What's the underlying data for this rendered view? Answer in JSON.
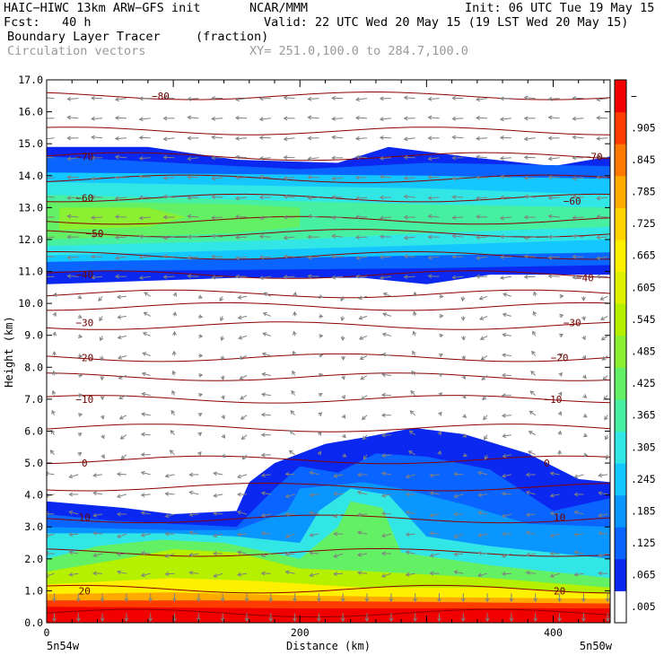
{
  "header": {
    "model": "HAIC−HIWC 13km ARW−GFS init",
    "org": "NCAR/MMM",
    "init": "Init: 06 UTC Tue 19 May 15",
    "fcst": "Fcst:   40 h",
    "valid": "Valid: 22 UTC Wed 20 May 15 (19 LST Wed 20 May 15)",
    "field": "Boundary Layer Tracer",
    "field_units": "(fraction)",
    "vectors": "Circulation vectors",
    "xsec": "XY= 251.0,100.0 to 284.7,100.0"
  },
  "chart_data": {
    "type": "heatmap",
    "xlabel": "Distance (km)",
    "ylabel": "Height (km)",
    "xlim": [
      0,
      445
    ],
    "ylim": [
      0,
      17
    ],
    "x_ticks": [
      "0",
      "200",
      "400"
    ],
    "x_tick_values": [
      0,
      200,
      400
    ],
    "x_end_labels": [
      "5n54w",
      "5n50w"
    ],
    "y_ticks": [
      "0.0",
      "1.0",
      "2.0",
      "3.0",
      "4.0",
      "5.0",
      "6.0",
      "7.0",
      "8.0",
      "9.0",
      "10.0",
      "11.0",
      "12.0",
      "13.0",
      "14.0",
      "15.0",
      "16.0",
      "17.0"
    ],
    "colorbar": {
      "labels": [
        ".005",
        ".065",
        ".125",
        ".185",
        ".245",
        ".305",
        ".365",
        ".425",
        ".485",
        ".545",
        ".605",
        ".665",
        ".725",
        ".785",
        ".845",
        ".905",
        "−"
      ],
      "colors": [
        "#ffffff",
        "#0a28f0",
        "#0a64ff",
        "#0a96ff",
        "#14c8ff",
        "#32e6e6",
        "#46f0a0",
        "#64f064",
        "#8cf032",
        "#b4f000",
        "#dcf000",
        "#fff000",
        "#ffd200",
        "#ffaa00",
        "#ff7800",
        "#ff3c00",
        "#f00000"
      ]
    },
    "contour_labels": [
      {
        "text": "−80",
        "x": 90,
        "y": 16.5
      },
      {
        "text": "−70",
        "x": 30,
        "y": 14.6
      },
      {
        "text": "−70",
        "x": 432,
        "y": 14.6
      },
      {
        "text": "−60",
        "x": 30,
        "y": 13.3
      },
      {
        "text": "−60",
        "x": 415,
        "y": 13.2
      },
      {
        "text": "−50",
        "x": 38,
        "y": 12.2
      },
      {
        "text": "−40",
        "x": 30,
        "y": 10.9
      },
      {
        "text": "−40",
        "x": 425,
        "y": 10.8
      },
      {
        "text": "−30",
        "x": 30,
        "y": 9.4
      },
      {
        "text": "−30",
        "x": 415,
        "y": 9.4
      },
      {
        "text": "−20",
        "x": 30,
        "y": 8.3
      },
      {
        "text": "−20",
        "x": 405,
        "y": 8.3
      },
      {
        "text": "−10",
        "x": 30,
        "y": 7.0
      },
      {
        "text": "−10",
        "x": 400,
        "y": 7.0
      },
      {
        "text": "0",
        "x": 30,
        "y": 5.0
      },
      {
        "text": "0",
        "x": 395,
        "y": 5.0
      },
      {
        "text": "10",
        "x": 30,
        "y": 3.3
      },
      {
        "text": "10",
        "x": 405,
        "y": 3.3
      },
      {
        "text": "20",
        "x": 30,
        "y": 1.0
      },
      {
        "text": "20",
        "x": 405,
        "y": 1.0
      }
    ],
    "contour_levels_y": [
      0.3,
      1.05,
      2.2,
      3.25,
      4.25,
      5.1,
      6.1,
      7.0,
      7.7,
      8.3,
      9.3,
      9.9,
      10.3,
      10.9,
      11.5,
      12.2,
      12.6,
      13.3,
      13.9,
      14.6,
      15.4,
      16.5
    ],
    "tracer_regions": [
      {
        "level": 1,
        "points": [
          [
            0,
            10.6
          ],
          [
            150,
            10.8
          ],
          [
            250,
            10.8
          ],
          [
            300,
            10.6
          ],
          [
            350,
            10.9
          ],
          [
            445,
            10.9
          ],
          [
            445,
            14.6
          ],
          [
            400,
            14.3
          ],
          [
            330,
            14.6
          ],
          [
            270,
            14.9
          ],
          [
            230,
            14.4
          ],
          [
            150,
            14.5
          ],
          [
            80,
            14.9
          ],
          [
            0,
            14.9
          ]
        ]
      },
      {
        "level": 2,
        "points": [
          [
            0,
            11.0
          ],
          [
            300,
            11.1
          ],
          [
            445,
            11.2
          ],
          [
            445,
            14.3
          ],
          [
            300,
            14.4
          ],
          [
            200,
            14.2
          ],
          [
            0,
            14.6
          ]
        ]
      },
      {
        "level": 4,
        "points": [
          [
            0,
            11.3
          ],
          [
            300,
            11.5
          ],
          [
            445,
            11.6
          ],
          [
            445,
            13.9
          ],
          [
            300,
            14.0
          ],
          [
            0,
            14.1
          ]
        ]
      },
      {
        "level": 5,
        "points": [
          [
            0,
            11.5
          ],
          [
            280,
            11.8
          ],
          [
            445,
            12.0
          ],
          [
            445,
            13.4
          ],
          [
            300,
            13.6
          ],
          [
            0,
            13.8
          ]
        ]
      },
      {
        "level": 6,
        "points": [
          [
            0,
            11.8
          ],
          [
            200,
            12.0
          ],
          [
            300,
            12.2
          ],
          [
            445,
            12.4
          ],
          [
            445,
            13.0
          ],
          [
            300,
            13.1
          ],
          [
            0,
            13.4
          ]
        ]
      },
      {
        "level": 7,
        "points": [
          [
            0,
            12.0
          ],
          [
            150,
            12.2
          ],
          [
            200,
            12.4
          ],
          [
            200,
            13.0
          ],
          [
            150,
            13.1
          ],
          [
            0,
            13.2
          ]
        ]
      },
      {
        "level": 8,
        "points": [
          [
            10,
            12.3
          ],
          [
            80,
            12.4
          ],
          [
            110,
            12.7
          ],
          [
            80,
            13.0
          ],
          [
            10,
            13.0
          ]
        ]
      },
      {
        "level": 1,
        "points": [
          [
            0,
            0
          ],
          [
            445,
            0
          ],
          [
            445,
            4.4
          ],
          [
            420,
            4.5
          ],
          [
            380,
            5.3
          ],
          [
            330,
            5.9
          ],
          [
            290,
            6.1
          ],
          [
            250,
            5.8
          ],
          [
            220,
            5.6
          ],
          [
            180,
            5.0
          ],
          [
            160,
            4.4
          ],
          [
            150,
            3.5
          ],
          [
            100,
            3.4
          ],
          [
            60,
            3.6
          ],
          [
            0,
            3.8
          ]
        ]
      },
      {
        "level": 2,
        "points": [
          [
            0,
            0
          ],
          [
            445,
            0
          ],
          [
            445,
            3.9
          ],
          [
            400,
            3.5
          ],
          [
            350,
            4.8
          ],
          [
            300,
            5.2
          ],
          [
            260,
            5.3
          ],
          [
            230,
            4.7
          ],
          [
            200,
            4.9
          ],
          [
            180,
            4.2
          ],
          [
            150,
            3.0
          ],
          [
            100,
            3.1
          ],
          [
            50,
            3.2
          ],
          [
            0,
            3.4
          ]
        ]
      },
      {
        "level": 3,
        "points": [
          [
            0,
            0
          ],
          [
            445,
            0
          ],
          [
            445,
            3.0
          ],
          [
            380,
            3.1
          ],
          [
            330,
            3.7
          ],
          [
            280,
            4.2
          ],
          [
            250,
            4.4
          ],
          [
            200,
            4.2
          ],
          [
            190,
            3.5
          ],
          [
            150,
            2.9
          ],
          [
            100,
            2.9
          ],
          [
            0,
            3.0
          ]
        ]
      },
      {
        "level": 5,
        "points": [
          [
            0,
            0
          ],
          [
            445,
            0
          ],
          [
            445,
            2.0
          ],
          [
            350,
            2.4
          ],
          [
            300,
            2.7
          ],
          [
            270,
            4.0
          ],
          [
            240,
            4.2
          ],
          [
            215,
            3.5
          ],
          [
            200,
            2.5
          ],
          [
            150,
            2.7
          ],
          [
            100,
            2.8
          ],
          [
            0,
            2.8
          ]
        ]
      },
      {
        "level": 7,
        "points": [
          [
            0,
            0
          ],
          [
            445,
            0
          ],
          [
            445,
            1.4
          ],
          [
            350,
            1.8
          ],
          [
            280,
            2.2
          ],
          [
            265,
            3.6
          ],
          [
            240,
            3.8
          ],
          [
            230,
            3.0
          ],
          [
            200,
            2.0
          ],
          [
            140,
            2.5
          ],
          [
            90,
            2.6
          ],
          [
            40,
            2.4
          ],
          [
            0,
            2.0
          ]
        ]
      },
      {
        "level": 9,
        "points": [
          [
            0,
            0
          ],
          [
            445,
            0
          ],
          [
            445,
            1.1
          ],
          [
            350,
            1.4
          ],
          [
            260,
            1.6
          ],
          [
            200,
            1.7
          ],
          [
            150,
            2.2
          ],
          [
            100,
            2.3
          ],
          [
            60,
            2.0
          ],
          [
            0,
            1.6
          ]
        ]
      },
      {
        "level": 11,
        "points": [
          [
            0,
            0
          ],
          [
            445,
            0
          ],
          [
            445,
            0.9
          ],
          [
            350,
            1.1
          ],
          [
            250,
            1.1
          ],
          [
            170,
            1.3
          ],
          [
            100,
            1.4
          ],
          [
            0,
            1.2
          ]
        ]
      },
      {
        "level": 13,
        "points": [
          [
            0,
            0
          ],
          [
            445,
            0
          ],
          [
            445,
            0.75
          ],
          [
            300,
            0.8
          ],
          [
            200,
            0.85
          ],
          [
            100,
            0.95
          ],
          [
            0,
            0.9
          ]
        ]
      },
      {
        "level": 15,
        "points": [
          [
            0,
            0
          ],
          [
            445,
            0
          ],
          [
            445,
            0.6
          ],
          [
            300,
            0.65
          ],
          [
            150,
            0.7
          ],
          [
            0,
            0.7
          ]
        ]
      },
      {
        "level": 16,
        "points": [
          [
            0,
            0
          ],
          [
            445,
            0
          ],
          [
            445,
            0.45
          ],
          [
            200,
            0.45
          ],
          [
            0,
            0.5
          ]
        ]
      }
    ]
  }
}
